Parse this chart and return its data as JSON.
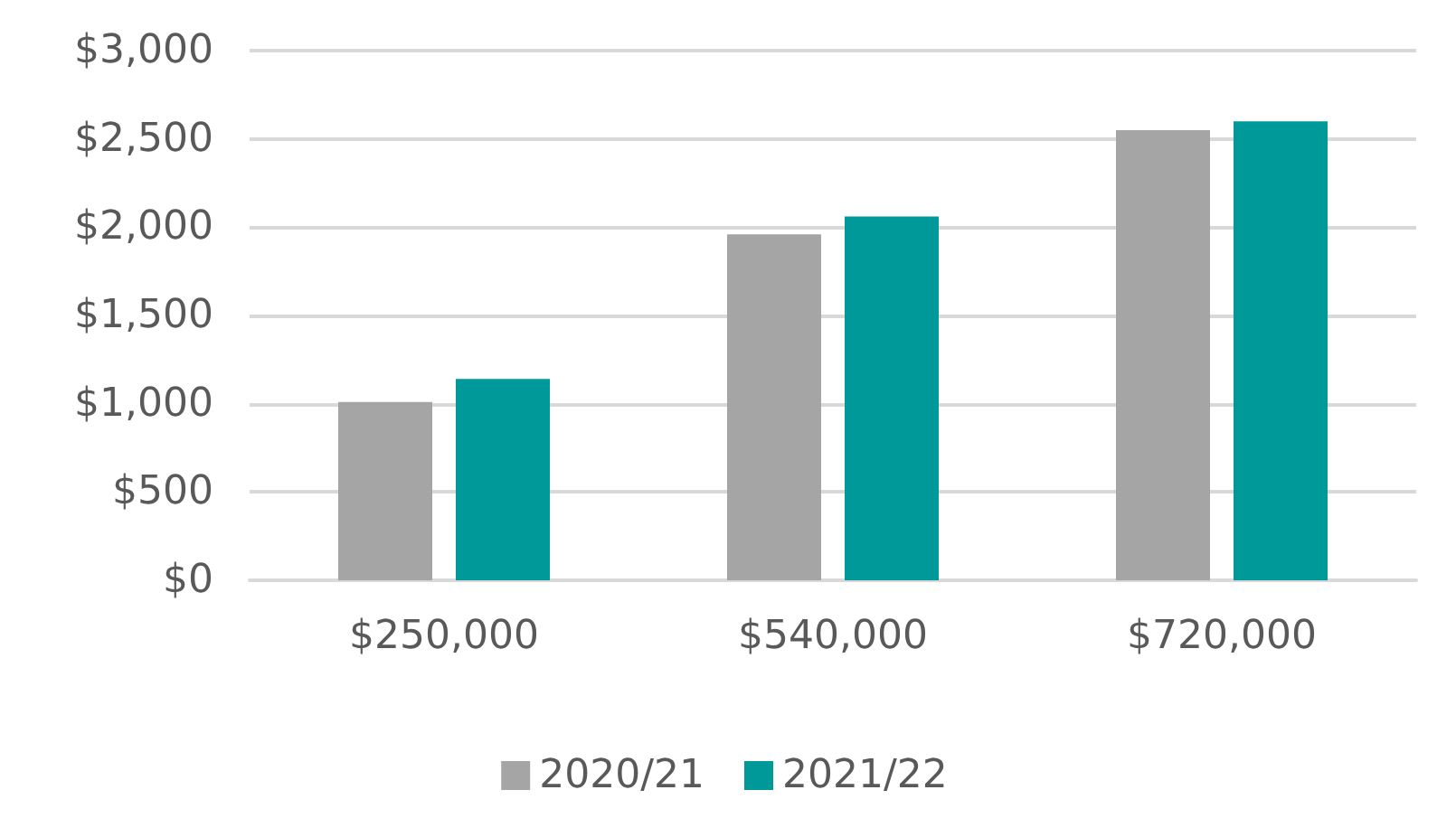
{
  "chart_data": {
    "type": "bar",
    "categories": [
      "$250,000",
      "$540,000",
      "$720,000"
    ],
    "series": [
      {
        "name": "2020/21",
        "color": "#a5a5a5",
        "values": [
          1010,
          1960,
          2550
        ]
      },
      {
        "name": "2021/22",
        "color": "#009999",
        "values": [
          1140,
          2060,
          2600
        ]
      }
    ],
    "ylim": [
      0,
      3000
    ],
    "yticks": [
      {
        "value": 0,
        "label": "$0"
      },
      {
        "value": 500,
        "label": "$500"
      },
      {
        "value": 1000,
        "label": "$1,000"
      },
      {
        "value": 1500,
        "label": "$1,500"
      },
      {
        "value": 2000,
        "label": "$2,000"
      },
      {
        "value": 2500,
        "label": "$2,500"
      },
      {
        "value": 3000,
        "label": "$3,000"
      }
    ],
    "grid": true,
    "legend": "bottom"
  }
}
